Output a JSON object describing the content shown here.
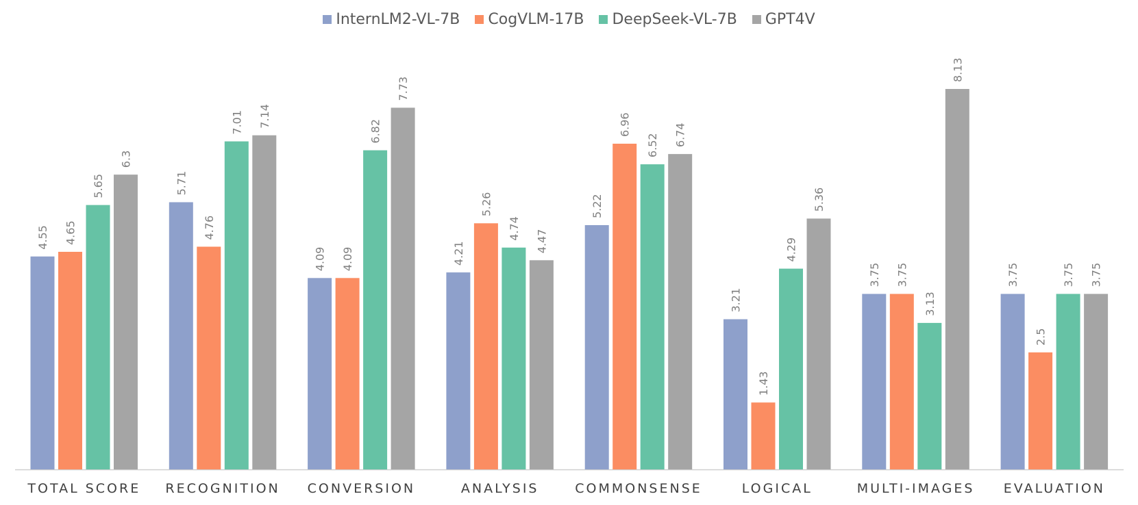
{
  "chart_data": {
    "type": "bar",
    "categories": [
      "TOTAL SCORE",
      "RECOGNITION",
      "CONVERSION",
      "ANALYSIS",
      "COMMONSENSE",
      "LOGICAL",
      "MULTI-IMAGES",
      "EVALUATION"
    ],
    "series": [
      {
        "name": "InternLM2-VL-7B",
        "color": "#8ea0cb",
        "values": [
          4.55,
          5.71,
          4.09,
          4.21,
          5.22,
          3.21,
          3.75,
          3.75
        ]
      },
      {
        "name": "CogVLM-17B",
        "color": "#fb8d62",
        "values": [
          4.65,
          4.76,
          4.09,
          5.26,
          6.96,
          1.43,
          3.75,
          2.5
        ]
      },
      {
        "name": "DeepSeek-VL-7B",
        "color": "#66c2a5",
        "values": [
          5.65,
          7.01,
          6.82,
          4.74,
          6.52,
          4.29,
          3.13,
          3.75
        ]
      },
      {
        "name": "GPT4V",
        "color": "#a5a5a5",
        "values": [
          6.3,
          7.14,
          7.73,
          4.47,
          6.74,
          5.36,
          8.13,
          3.75
        ]
      }
    ],
    "title": "",
    "xlabel": "",
    "ylabel": "",
    "ylim": [
      0,
      8.13
    ],
    "legend_position": "top-center",
    "grid": false
  }
}
